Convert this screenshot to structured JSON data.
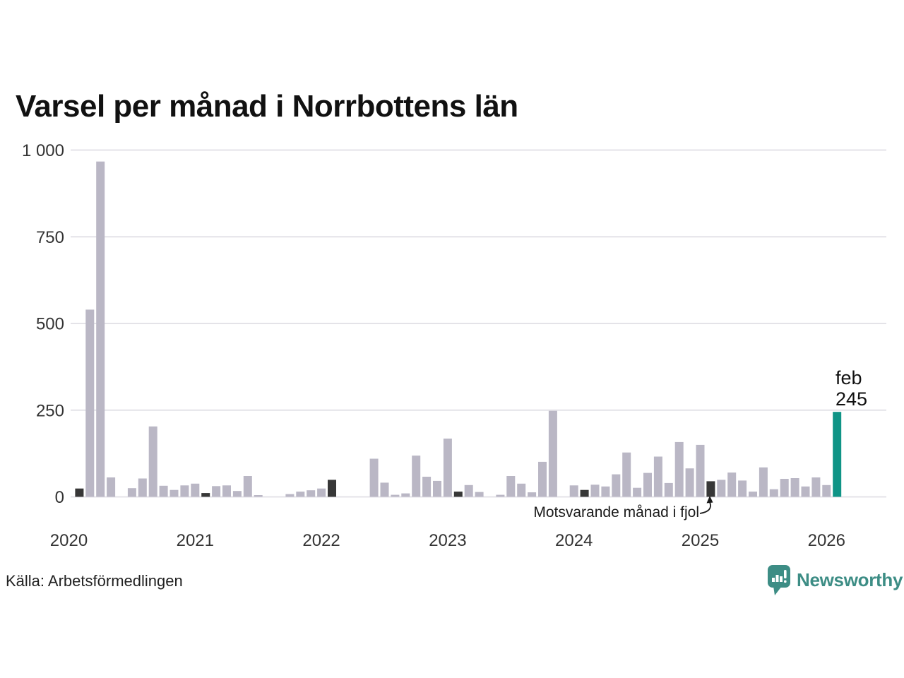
{
  "title": "Varsel per månad i Norrbottens län",
  "source_note": "Källa: Arbetsförmedlingen",
  "branding": {
    "wordmark": "Newsworthy",
    "logo_color": "#3d8d85"
  },
  "annotation": {
    "label": "Motsvarande månad i fjol",
    "target_month": "2025-02"
  },
  "highlight_callout": {
    "month": "feb",
    "value": "245"
  },
  "colors": {
    "bar": "#bab7c5",
    "comparison_bar": "#373737",
    "highlight_bar": "#0f9486",
    "grid": "#e4e3e8",
    "axis_text": "#333333",
    "text": "#1a1a1a"
  },
  "chart_data": {
    "type": "bar",
    "title": "Varsel per månad i Norrbottens län",
    "x_start_month": "2020-01",
    "x_end_month": "2026-02",
    "x_axis": {
      "ticks": [
        "2020",
        "2021",
        "2022",
        "2023",
        "2024",
        "2025",
        "2026"
      ]
    },
    "y_axis": {
      "ticks": [
        0,
        250,
        500,
        750,
        1000
      ],
      "tick_labels": [
        "0",
        "250",
        "500",
        "750",
        "1 000"
      ],
      "range": [
        0,
        1000
      ]
    },
    "grid": "horizontal",
    "legend": "none",
    "values": [
      0,
      24,
      540,
      967,
      56,
      0,
      25,
      53,
      203,
      32,
      20,
      33,
      38,
      11,
      31,
      33,
      17,
      60,
      5,
      0,
      0,
      8,
      15,
      19,
      24,
      49,
      0,
      0,
      0,
      110,
      41,
      6,
      10,
      119,
      58,
      46,
      168,
      15,
      34,
      14,
      0,
      6,
      60,
      38,
      13,
      101,
      248,
      0,
      33,
      20,
      35,
      30,
      65,
      128,
      26,
      69,
      116,
      40,
      158,
      82,
      150,
      45,
      49,
      70,
      47,
      15,
      85,
      22,
      52,
      54,
      30,
      56,
      34,
      245
    ],
    "comparison_month_indices": [
      1,
      13,
      25,
      37,
      49,
      61
    ],
    "highlight_index": 73,
    "highlight_value_label": "feb 245"
  }
}
